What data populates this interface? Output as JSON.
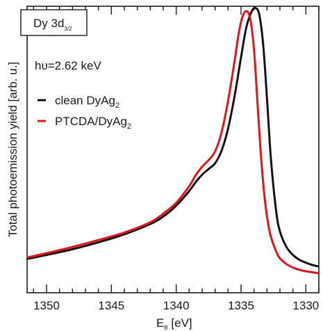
{
  "chart_data": {
    "type": "line",
    "title_box": {
      "main": "Dy 3d",
      "sub": "3/2"
    },
    "annotation": "hυ=2.62 keV",
    "xlabel": {
      "main": "E",
      "sub": "B",
      "unit": " [eV]"
    },
    "ylabel": "Total photoemission yield [arb. u.]",
    "xlim": [
      1351.5,
      1329
    ],
    "ylim": [
      0,
      1.0
    ],
    "x_reversed": true,
    "y_ticks_labeled": false,
    "x_ticks": [
      1350,
      1345,
      1340,
      1335,
      1330
    ],
    "x_tick_labels": [
      "1350",
      "1345",
      "1340",
      "1335",
      "1330"
    ],
    "legend_position": "upper-left",
    "series": [
      {
        "name": "clean DyAg",
        "name_sub": "2",
        "color": "#111111",
        "x": [
          1351.5,
          1350,
          1348,
          1346,
          1344,
          1342,
          1341,
          1340,
          1339,
          1338.5,
          1338,
          1337.5,
          1337,
          1336.5,
          1336,
          1335.5,
          1335,
          1334.6,
          1334.2,
          1333.9,
          1333.6,
          1333.3,
          1333.0,
          1332.7,
          1332.3,
          1332,
          1331.5,
          1331,
          1330.5,
          1330,
          1329.5,
          1329
        ],
        "values": [
          0.118,
          0.132,
          0.152,
          0.176,
          0.204,
          0.24,
          0.266,
          0.304,
          0.355,
          0.386,
          0.412,
          0.432,
          0.452,
          0.496,
          0.573,
          0.686,
          0.822,
          0.925,
          0.98,
          0.994,
          0.972,
          0.87,
          0.68,
          0.47,
          0.288,
          0.214,
          0.16,
          0.132,
          0.115,
          0.105,
          0.097,
          0.092
        ]
      },
      {
        "name": "PTCDA/DyAg",
        "name_sub": "2",
        "color": "#e0141c",
        "x": [
          1351.5,
          1350,
          1348,
          1346,
          1344,
          1342,
          1341,
          1340,
          1339,
          1338.5,
          1338,
          1337.5,
          1337,
          1336.5,
          1336,
          1335.5,
          1335.2,
          1334.9,
          1334.6,
          1334.3,
          1334.0,
          1333.7,
          1333.4,
          1333.1,
          1332.8,
          1332.5,
          1332.2,
          1332,
          1331.5,
          1331,
          1330.5,
          1330,
          1329
        ],
        "values": [
          0.123,
          0.138,
          0.16,
          0.184,
          0.21,
          0.246,
          0.276,
          0.314,
          0.372,
          0.41,
          0.44,
          0.463,
          0.493,
          0.56,
          0.67,
          0.808,
          0.9,
          0.962,
          0.983,
          0.958,
          0.85,
          0.64,
          0.44,
          0.3,
          0.215,
          0.168,
          0.135,
          0.12,
          0.1,
          0.088,
          0.08,
          0.075,
          0.068
        ]
      }
    ]
  }
}
